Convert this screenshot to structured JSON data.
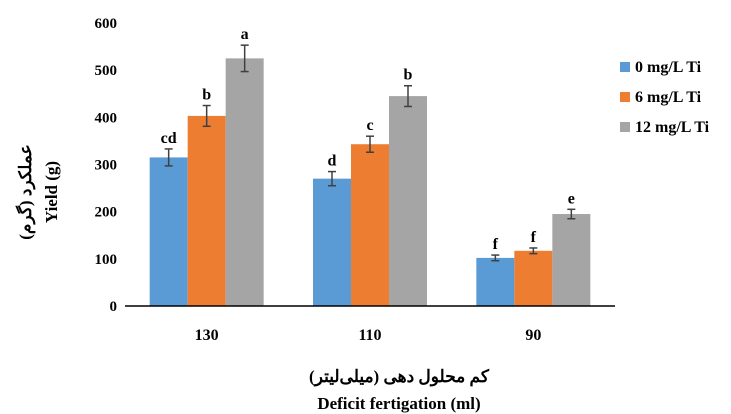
{
  "chart_data": {
    "type": "bar",
    "categories": [
      "130",
      "110",
      "90"
    ],
    "series": [
      {
        "name": "0 mg/L Ti",
        "color": "#5B9BD5",
        "values": [
          315,
          270,
          102
        ],
        "errors": [
          18,
          15,
          6
        ],
        "labels": [
          "cd",
          "d",
          "f"
        ]
      },
      {
        "name": "6 mg/L Ti",
        "color": "#ED7D31",
        "values": [
          403,
          343,
          117
        ],
        "errors": [
          22,
          17,
          6
        ],
        "labels": [
          "b",
          "c",
          "f"
        ]
      },
      {
        "name": "12 mg/L Ti",
        "color": "#A5A5A5",
        "values": [
          525,
          445,
          195
        ],
        "errors": [
          28,
          22,
          10
        ],
        "labels": [
          "a",
          "b",
          "e"
        ]
      }
    ],
    "yticks": [
      0,
      100,
      200,
      300,
      400,
      500,
      600
    ],
    "ylim": [
      0,
      600
    ],
    "ylabel": "Yield (g)",
    "ylabel_fa": "عملکرد (گرم)",
    "xlabel": "Deficit fertigation (ml)",
    "xlabel_fa": "کم محلول دهی (میلی‌لیتر)",
    "legend_position": "right",
    "grid": false,
    "axis_color": "#000000",
    "error_bar_color": "#404040"
  }
}
